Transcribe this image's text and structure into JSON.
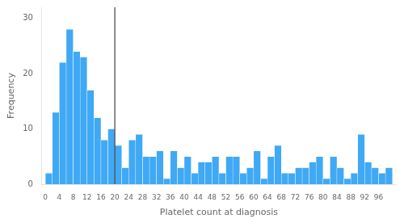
{
  "chart_data": {
    "type": "histogram",
    "bins": [
      0,
      2,
      4,
      6,
      8,
      10,
      12,
      14,
      16,
      18,
      20,
      22,
      24,
      26,
      28,
      30,
      32,
      34,
      36,
      38,
      40,
      42,
      44,
      46,
      48,
      50,
      52,
      54,
      56,
      58,
      60,
      62,
      64,
      66,
      68,
      70,
      72,
      74,
      76,
      78,
      80,
      82,
      84,
      86,
      88,
      90,
      92,
      94,
      96,
      98,
      100
    ],
    "values": [
      2,
      13,
      22,
      28,
      24,
      23,
      17,
      12,
      8,
      10,
      7,
      3,
      8,
      9,
      5,
      5,
      6,
      1,
      6,
      3,
      5,
      2,
      4,
      4,
      5,
      2,
      5,
      5,
      2,
      3,
      6,
      1,
      5,
      7,
      2,
      2,
      3,
      3,
      4,
      5,
      1,
      5,
      3,
      1,
      2,
      9,
      4,
      3,
      2,
      3
    ],
    "color": "#3fa9f5",
    "vlines": [
      {
        "x": 20,
        "color": "#404040"
      }
    ],
    "xlabel": "Platelet count at diagnosis",
    "ylabel": "Frequency",
    "xlim": [
      -1,
      101
    ],
    "xticks": [
      0,
      4,
      8,
      12,
      16,
      20,
      24,
      28,
      32,
      36,
      40,
      44,
      48,
      52,
      56,
      60,
      64,
      68,
      72,
      76,
      80,
      84,
      88,
      92,
      96
    ],
    "ylim": [
      0,
      32
    ],
    "yticks": [
      0,
      10,
      20,
      30
    ],
    "grid": false
  }
}
